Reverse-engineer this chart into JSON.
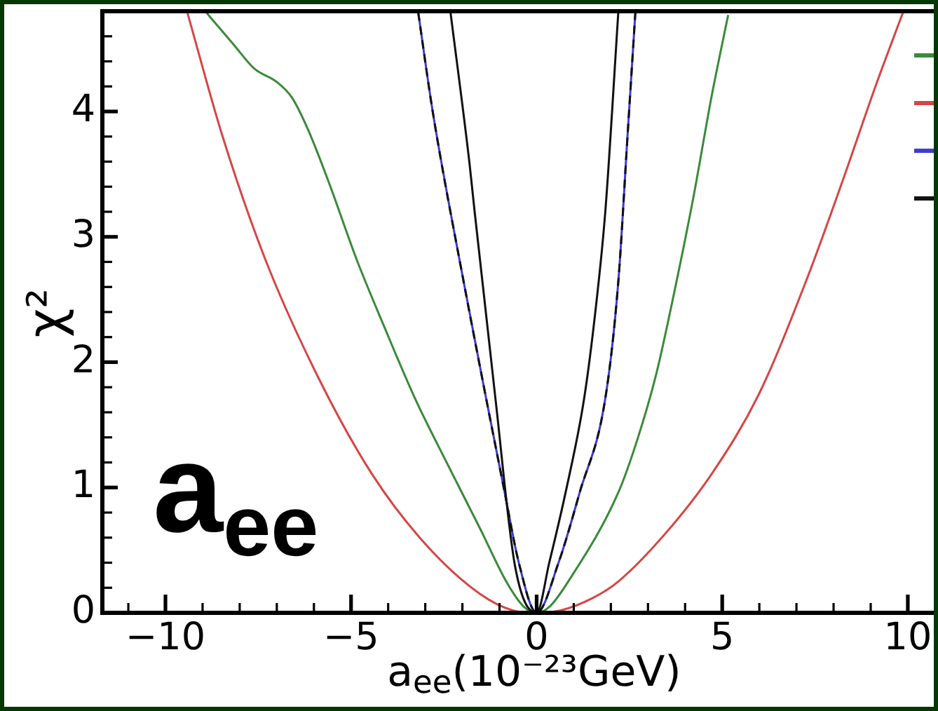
{
  "chart_data": {
    "type": "line",
    "xlabel": "a$_{ee}$(10⁻²³GeV)",
    "ylabel": "χ²",
    "annotations": [
      "a$_{ee}$"
    ],
    "xlim": [
      -11.7,
      10.7
    ],
    "ylim": [
      0,
      4.8
    ],
    "xticks": [
      {
        "value": -11,
        "label": null
      },
      {
        "value": -10,
        "label": "−10"
      },
      {
        "value": -9,
        "label": null
      },
      {
        "value": -8,
        "label": null
      },
      {
        "value": -7,
        "label": null
      },
      {
        "value": -6,
        "label": null
      },
      {
        "value": -5,
        "label": "−5"
      },
      {
        "value": -4,
        "label": null
      },
      {
        "value": -3,
        "label": null
      },
      {
        "value": -2,
        "label": null
      },
      {
        "value": -1,
        "label": null
      },
      0,
      {
        "value": 1,
        "label": null
      },
      {
        "value": 2,
        "label": null
      },
      {
        "value": 3,
        "label": null
      },
      {
        "value": 4,
        "label": null
      },
      5,
      {
        "value": 6,
        "label": null
      },
      {
        "value": 7,
        "label": null
      },
      {
        "value": 8,
        "label": null
      },
      {
        "value": 9,
        "label": null
      },
      10
    ],
    "yticks": [
      0,
      {
        "value": 0.2,
        "label": null
      },
      {
        "value": 0.4,
        "label": null
      },
      {
        "value": 0.6,
        "label": null
      },
      {
        "value": 0.8,
        "label": null
      },
      1,
      {
        "value": 1.2,
        "label": null
      },
      {
        "value": 1.4,
        "label": null
      },
      {
        "value": 1.6,
        "label": null
      },
      {
        "value": 1.8,
        "label": null
      },
      2,
      {
        "value": 2.2,
        "label": null
      },
      {
        "value": 2.4,
        "label": null
      },
      {
        "value": 2.6,
        "label": null
      },
      {
        "value": 2.8,
        "label": null
      },
      3,
      {
        "value": 3.2,
        "label": null
      },
      {
        "value": 3.4,
        "label": null
      },
      {
        "value": 3.6,
        "label": null
      },
      {
        "value": 3.8,
        "label": null
      },
      4,
      {
        "value": 4.2,
        "label": null
      },
      {
        "value": 4.4,
        "label": null
      },
      {
        "value": 4.6,
        "label": null
      }
    ],
    "marker": "none",
    "series": [
      {
        "color": "#3a8a3a",
        "x": [
          -8.9,
          -8.18,
          -7.6,
          -7.02,
          -6.59,
          -6.15,
          -5.58,
          -4.85,
          -4.13,
          -3.26,
          -2.39,
          -1.52,
          -0.8,
          -0.35,
          0,
          0.35,
          0.83,
          2.2,
          2.7,
          3.21,
          3.71,
          4.22,
          4.72,
          5.16
        ],
        "values": [
          4.79,
          4.54,
          4.34,
          4.24,
          4.11,
          3.85,
          3.42,
          2.82,
          2.3,
          1.7,
          1.18,
          0.67,
          0.24,
          0.05,
          0,
          0.05,
          0.24,
          0.96,
          1.37,
          1.89,
          2.56,
          3.31,
          4.13,
          4.77
        ]
      },
      {
        "color": "#d64545",
        "x": [
          -9.41,
          -8.47,
          -7.31,
          -5.87,
          -4.42,
          -2.97,
          -1.52,
          -0.65,
          0,
          0.65,
          1.52,
          2.2,
          3.46,
          4.72,
          5.98,
          7.25,
          8.26,
          9.14,
          9.87
        ],
        "values": [
          4.79,
          3.81,
          2.82,
          1.87,
          1.1,
          0.54,
          0.15,
          0.02,
          0,
          0.02,
          0.12,
          0.25,
          0.63,
          1.11,
          1.74,
          2.64,
          3.46,
          4.21,
          4.79
        ]
      },
      {
        "color": "#3c3cd6",
        "x": [
          -3.19,
          -2.8,
          -1.92,
          -1.36,
          -0.86,
          -0.48,
          0,
          0.59,
          1.16,
          1.85,
          2.2,
          2.45,
          2.66
        ],
        "values": [
          4.79,
          4.0,
          2.57,
          1.71,
          0.96,
          0.4,
          0,
          0.4,
          0.96,
          1.71,
          2.64,
          3.81,
          4.79
        ]
      },
      {
        "color": "#111111",
        "x": [
          -2.32,
          -1.81,
          -1.67,
          -1.11,
          -0.58,
          0,
          0.34,
          0.78,
          1.28,
          1.6,
          1.85,
          2.2
        ],
        "values": [
          4.79,
          3.59,
          3.2,
          1.71,
          0.37,
          0,
          0.4,
          0.96,
          1.71,
          2.45,
          3.2,
          4.79
        ]
      },
      {
        "color": "#111111",
        "line_style": "dashed",
        "x": [
          -3.19,
          -2.8,
          -1.92,
          -1.36,
          -0.86,
          -0.48,
          0,
          0.59,
          1.16,
          1.85,
          2.2,
          2.45,
          2.66
        ],
        "values": [
          4.79,
          4.0,
          2.57,
          1.71,
          0.96,
          0.4,
          0,
          0.4,
          0.96,
          1.71,
          2.64,
          3.81,
          4.79
        ]
      }
    ]
  }
}
